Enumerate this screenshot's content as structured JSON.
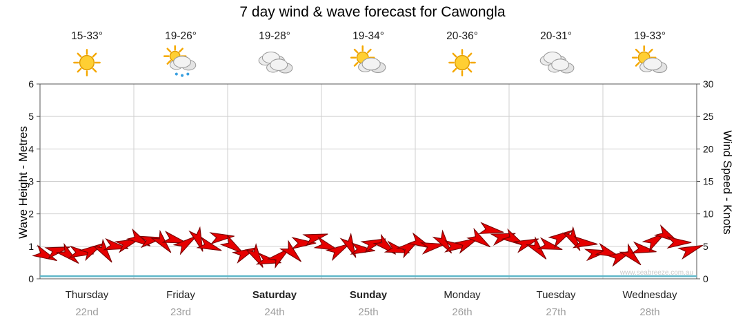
{
  "title": "7 day wind & wave forecast for Cawongla",
  "watermark": "www.seabreeze.com.au",
  "days": [
    {
      "name": "Thursday",
      "date": "22nd",
      "temp": "15-33°",
      "icon": "sunny",
      "emphasis": false
    },
    {
      "name": "Friday",
      "date": "23rd",
      "temp": "19-26°",
      "icon": "sun-cloud-rain",
      "emphasis": false
    },
    {
      "name": "Saturday",
      "date": "24th",
      "temp": "19-28°",
      "icon": "cloudy",
      "emphasis": true
    },
    {
      "name": "Sunday",
      "date": "25th",
      "temp": "19-34°",
      "icon": "sun-cloud",
      "emphasis": true
    },
    {
      "name": "Monday",
      "date": "26th",
      "temp": "20-36°",
      "icon": "sunny",
      "emphasis": false
    },
    {
      "name": "Tuesday",
      "date": "27th",
      "temp": "20-31°",
      "icon": "cloudy",
      "emphasis": false
    },
    {
      "name": "Wednesday",
      "date": "28th",
      "temp": "19-33°",
      "icon": "sun-cloud",
      "emphasis": false
    }
  ],
  "chart_data": {
    "type": "wind-arrows",
    "title": "7 day wind & wave forecast for Cawongla",
    "x_categories": [
      "Thursday",
      "Friday",
      "Saturday",
      "Sunday",
      "Monday",
      "Tuesday",
      "Wednesday"
    ],
    "grid": true,
    "left_axis": {
      "label": "Wave Height - Metres",
      "range": [
        0,
        6
      ],
      "ticks": [
        0,
        1,
        2,
        3,
        4,
        5,
        6
      ]
    },
    "right_axis": {
      "label": "Wind Speed - Knots",
      "range": [
        0,
        30
      ],
      "ticks": [
        0,
        5,
        10,
        15,
        20,
        25,
        30
      ]
    },
    "wave_line": {
      "label": "wave-height-line",
      "constant_m": 0.08,
      "color": "#5fb7c9"
    },
    "wind_arrows": {
      "color": "#e60000",
      "outline": "#7a0000",
      "points": [
        [
          0.06,
          3.6,
          25
        ],
        [
          0.19,
          4.4,
          -15
        ],
        [
          0.31,
          3.6,
          40
        ],
        [
          0.44,
          4.0,
          5
        ],
        [
          0.56,
          4.5,
          -30
        ],
        [
          0.69,
          4.1,
          55
        ],
        [
          0.81,
          5.0,
          10
        ],
        [
          0.94,
          5.5,
          -20
        ],
        [
          1.06,
          6.0,
          30
        ],
        [
          1.19,
          6.0,
          -10
        ],
        [
          1.31,
          5.5,
          50
        ],
        [
          1.44,
          6.0,
          15
        ],
        [
          1.56,
          5.5,
          -35
        ],
        [
          1.69,
          6.0,
          70
        ],
        [
          1.81,
          5.0,
          20
        ],
        [
          1.94,
          6.4,
          -5
        ],
        [
          2.06,
          5.0,
          35
        ],
        [
          2.19,
          4.0,
          -25
        ],
        [
          2.31,
          3.4,
          60
        ],
        [
          2.44,
          2.8,
          10
        ],
        [
          2.56,
          3.5,
          -40
        ],
        [
          2.69,
          4.0,
          45
        ],
        [
          2.81,
          5.5,
          0
        ],
        [
          2.94,
          6.4,
          -15
        ],
        [
          3.06,
          5.0,
          20
        ],
        [
          3.19,
          4.5,
          -30
        ],
        [
          3.31,
          5.0,
          65
        ],
        [
          3.44,
          4.5,
          5
        ],
        [
          3.56,
          5.5,
          -20
        ],
        [
          3.69,
          5.0,
          40
        ],
        [
          3.81,
          4.5,
          15
        ],
        [
          3.94,
          5.0,
          -35
        ],
        [
          4.06,
          5.5,
          25
        ],
        [
          4.19,
          5.0,
          -10
        ],
        [
          4.31,
          5.5,
          55
        ],
        [
          4.44,
          5.0,
          0
        ],
        [
          4.56,
          5.5,
          -25
        ],
        [
          4.69,
          6.0,
          35
        ],
        [
          4.81,
          7.5,
          10
        ],
        [
          4.94,
          6.5,
          -15
        ],
        [
          5.06,
          6.0,
          30
        ],
        [
          5.19,
          5.5,
          -20
        ],
        [
          5.31,
          4.5,
          50
        ],
        [
          5.44,
          5.0,
          15
        ],
        [
          5.56,
          6.5,
          -30
        ],
        [
          5.69,
          6.0,
          60
        ],
        [
          5.81,
          5.5,
          5
        ],
        [
          5.94,
          4.0,
          -10
        ],
        [
          6.06,
          4.0,
          20
        ],
        [
          6.19,
          3.5,
          -25
        ],
        [
          6.31,
          3.5,
          45
        ],
        [
          6.44,
          4.5,
          10
        ],
        [
          6.56,
          6.0,
          -35
        ],
        [
          6.69,
          6.6,
          30
        ],
        [
          6.81,
          5.6,
          0
        ],
        [
          6.94,
          4.5,
          -20
        ]
      ]
    }
  }
}
